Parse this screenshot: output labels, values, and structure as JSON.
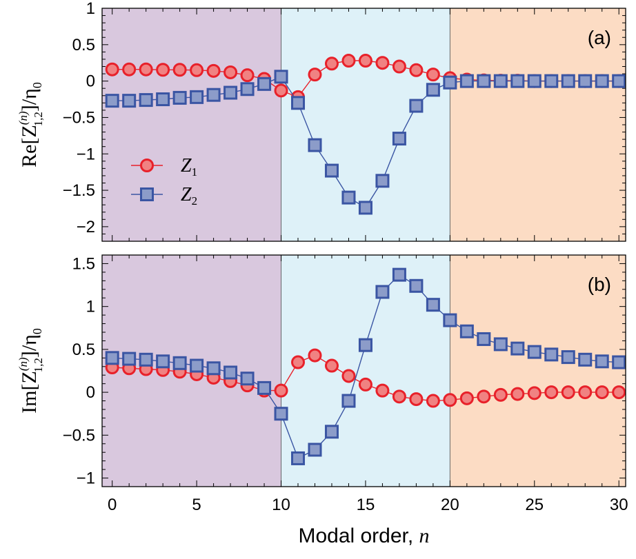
{
  "chart_data": [
    {
      "type": "scatter",
      "panel_label": "(a)",
      "ylabel": {
        "main": "Re[Z",
        "superscript": "(n)",
        "subscript": "1,2",
        "suffix": "]/η",
        "suffix_sub": "0"
      },
      "xlim": [
        -0.6,
        30.4
      ],
      "ylim": [
        -2.2,
        1.0
      ],
      "yticks": [
        1,
        0.5,
        0,
        -0.5,
        -1,
        -1.5,
        -2
      ],
      "ytick_labels": [
        "1",
        "0.5",
        "0",
        "−0.5",
        "−1",
        "−1.5",
        "−2"
      ],
      "legend": {
        "placement": "center-left"
      },
      "regions": [
        {
          "from": -0.6,
          "to": 10,
          "color": "#d9c8de"
        },
        {
          "from": 10,
          "to": 20,
          "color": "#def1f8"
        },
        {
          "from": 20,
          "to": 30.4,
          "color": "#fcdcc4"
        }
      ],
      "series": [
        {
          "name": "Z",
          "name_sub": "1",
          "marker": "circle",
          "color": "#e8212a",
          "fill": "#f08282",
          "x": [
            0,
            1,
            2,
            3,
            4,
            5,
            6,
            7,
            8,
            9,
            10,
            11,
            12,
            13,
            14,
            15,
            16,
            17,
            18,
            19,
            20,
            21,
            22,
            23,
            24,
            25,
            26,
            27,
            28,
            29,
            30
          ],
          "values": [
            0.16,
            0.16,
            0.16,
            0.155,
            0.155,
            0.15,
            0.14,
            0.12,
            0.08,
            0.03,
            -0.13,
            -0.22,
            0.09,
            0.24,
            0.28,
            0.28,
            0.25,
            0.2,
            0.15,
            0.09,
            0.04,
            0.02,
            0.01,
            0.005,
            0.005,
            0.0,
            0.0,
            0.0,
            0.0,
            0.0,
            0.0
          ]
        },
        {
          "name": "Z",
          "name_sub": "2",
          "marker": "square",
          "color": "#3a55a3",
          "fill": "#8c9cc9",
          "x": [
            0,
            1,
            2,
            3,
            4,
            5,
            6,
            7,
            8,
            9,
            10,
            11,
            12,
            13,
            14,
            15,
            16,
            17,
            18,
            19,
            20,
            21,
            22,
            23,
            24,
            25,
            26,
            27,
            28,
            29,
            30
          ],
          "values": [
            -0.27,
            -0.27,
            -0.26,
            -0.25,
            -0.23,
            -0.22,
            -0.19,
            -0.16,
            -0.11,
            -0.04,
            0.06,
            -0.3,
            -0.88,
            -1.23,
            -1.6,
            -1.74,
            -1.37,
            -0.79,
            -0.34,
            -0.12,
            -0.02,
            0.0,
            0.0,
            0.0,
            0.0,
            0.0,
            0.0,
            0.0,
            0.0,
            0.0,
            0.0
          ]
        }
      ]
    },
    {
      "type": "scatter",
      "panel_label": "(b)",
      "ylabel": {
        "main": "Im[Z",
        "superscript": "(n)",
        "subscript": "1,2",
        "suffix": "]/η",
        "suffix_sub": "0"
      },
      "xlabel": {
        "text": "Modal order, ",
        "var": "n"
      },
      "xlim": [
        -0.6,
        30.4
      ],
      "ylim": [
        -1.1,
        1.6
      ],
      "xticks": [
        0,
        5,
        10,
        15,
        20,
        25,
        30
      ],
      "xtick_labels": [
        "0",
        "5",
        "10",
        "15",
        "20",
        "25",
        "30"
      ],
      "yticks": [
        1.5,
        1,
        0.5,
        0,
        -0.5,
        -1
      ],
      "ytick_labels": [
        "1.5",
        "1",
        "0.5",
        "0",
        "−0.5",
        "−1"
      ],
      "regions": [
        {
          "from": -0.6,
          "to": 10,
          "color": "#d9c8de"
        },
        {
          "from": 10,
          "to": 20,
          "color": "#def1f8"
        },
        {
          "from": 20,
          "to": 30.4,
          "color": "#fcdcc4"
        }
      ],
      "series": [
        {
          "name": "Z1",
          "marker": "circle",
          "color": "#e8212a",
          "fill": "#f08282",
          "x": [
            0,
            1,
            2,
            3,
            4,
            5,
            6,
            7,
            8,
            9,
            10,
            11,
            12,
            13,
            14,
            15,
            16,
            17,
            18,
            19,
            20,
            21,
            22,
            23,
            24,
            25,
            26,
            27,
            28,
            29,
            30
          ],
          "values": [
            0.29,
            0.28,
            0.27,
            0.26,
            0.24,
            0.21,
            0.17,
            0.13,
            0.08,
            0.02,
            0.02,
            0.35,
            0.43,
            0.31,
            0.19,
            0.09,
            0.02,
            -0.05,
            -0.08,
            -0.1,
            -0.09,
            -0.07,
            -0.05,
            -0.03,
            -0.02,
            -0.01,
            0.0,
            0.0,
            0.0,
            0.0,
            0.0
          ]
        },
        {
          "name": "Z2",
          "marker": "square",
          "color": "#3a55a3",
          "fill": "#8c9cc9",
          "x": [
            0,
            1,
            2,
            3,
            4,
            5,
            6,
            7,
            8,
            9,
            10,
            11,
            12,
            13,
            14,
            15,
            16,
            17,
            18,
            19,
            20,
            21,
            22,
            23,
            24,
            25,
            26,
            27,
            28,
            29,
            30
          ],
          "values": [
            0.4,
            0.39,
            0.38,
            0.36,
            0.34,
            0.31,
            0.28,
            0.23,
            0.16,
            0.05,
            -0.25,
            -0.77,
            -0.67,
            -0.46,
            -0.1,
            0.55,
            1.17,
            1.37,
            1.24,
            1.02,
            0.84,
            0.71,
            0.62,
            0.56,
            0.51,
            0.47,
            0.44,
            0.41,
            0.38,
            0.36,
            0.35
          ]
        }
      ]
    }
  ]
}
